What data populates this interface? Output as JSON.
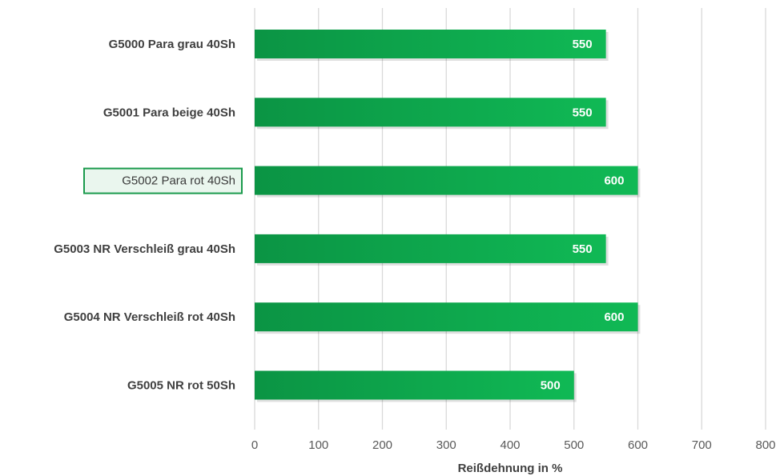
{
  "chart_data": {
    "type": "bar",
    "orientation": "horizontal",
    "categories": [
      "G5000 Para grau 40Sh",
      "G5001 Para beige 40Sh",
      "G5002 Para rot 40Sh",
      "G5003 NR Verschleiß grau 40Sh",
      "G5004 NR Verschleiß rot 40Sh",
      "G5005 NR rot 50Sh"
    ],
    "values": [
      550,
      550,
      600,
      550,
      600,
      500
    ],
    "highlighted_category": "G5002 Para rot 40Sh",
    "xlabel": "Reißdehnung in %",
    "ylabel": "",
    "xlim": [
      0,
      800
    ],
    "xticks": [
      0,
      100,
      200,
      300,
      400,
      500,
      600,
      700,
      800
    ],
    "grid": true,
    "data_labels": true,
    "colors": {
      "bar_start": "#0b9444",
      "bar_end": "#10b955",
      "highlight_border": "#1a9a4c",
      "highlight_fill": "#eaf6ee",
      "grid": "#d9d9d9"
    }
  }
}
